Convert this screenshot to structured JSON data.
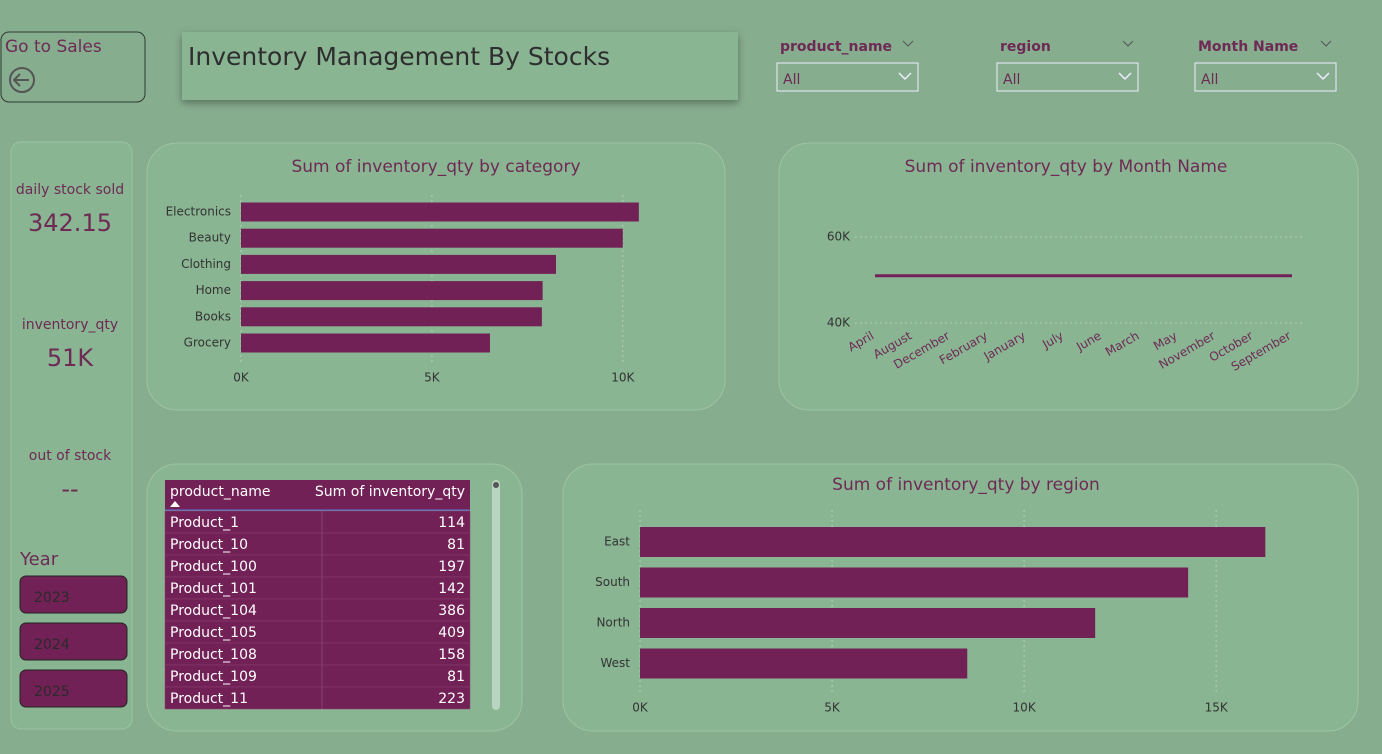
{
  "nav": {
    "button": "Go to Sales"
  },
  "header": {
    "title": "Inventory Management By Stocks"
  },
  "filters": [
    {
      "label": "product_name",
      "value": "All"
    },
    {
      "label": "region",
      "value": "All"
    },
    {
      "label": "Month Name",
      "value": "All"
    }
  ],
  "cards": [
    {
      "label": "daily stock sold",
      "value": "342.15"
    },
    {
      "label": "inventory_qty",
      "value": "51K"
    },
    {
      "label": "out of stock",
      "value": "--"
    }
  ],
  "year_slicer": {
    "title": "Year",
    "options": [
      "2023",
      "2024",
      "2025"
    ]
  },
  "table": {
    "columns": [
      "product_name",
      "Sum of inventory_qty"
    ],
    "rows": [
      [
        "Product_1",
        114
      ],
      [
        "Product_10",
        81
      ],
      [
        "Product_100",
        197
      ],
      [
        "Product_101",
        142
      ],
      [
        "Product_104",
        386
      ],
      [
        "Product_105",
        409
      ],
      [
        "Product_108",
        158
      ],
      [
        "Product_109",
        81
      ],
      [
        "Product_11",
        223
      ]
    ]
  },
  "chart_data": [
    {
      "type": "hbar",
      "title": "Sum of inventory_qty by category",
      "categories": [
        "Electronics",
        "Beauty",
        "Clothing",
        "Home",
        "Books",
        "Grocery"
      ],
      "values": [
        10420,
        10000,
        8250,
        7900,
        7880,
        6520
      ],
      "color": "#722157",
      "xlim": [
        0,
        11000
      ],
      "xticks": [
        {
          "value": 0,
          "label": "0K"
        },
        {
          "value": 5000,
          "label": "5K"
        },
        {
          "value": 10000,
          "label": "10K"
        }
      ],
      "grid": true
    },
    {
      "type": "line",
      "title": "Sum of inventory_qty by Month Name",
      "categories": [
        "April",
        "August",
        "December",
        "February",
        "January",
        "July",
        "June",
        "March",
        "May",
        "November",
        "October",
        "September"
      ],
      "values": [
        51000,
        51000,
        51000,
        51000,
        51000,
        51000,
        51000,
        51000,
        51000,
        51000,
        51000,
        51000
      ],
      "color": "#722157",
      "ylim": [
        40000,
        60000
      ],
      "yticks": [
        {
          "value": 40000,
          "label": "40K"
        },
        {
          "value": 60000,
          "label": "60K"
        }
      ],
      "grid": true
    },
    {
      "type": "hbar",
      "title": "Sum of inventory_qty by region",
      "categories": [
        "East",
        "South",
        "North",
        "West"
      ],
      "values": [
        16280,
        14270,
        11850,
        8520
      ],
      "color": "#722157",
      "xlim": [
        0,
        17000
      ],
      "xticks": [
        {
          "value": 0,
          "label": "0K"
        },
        {
          "value": 5000,
          "label": "5K"
        },
        {
          "value": 10000,
          "label": "10K"
        },
        {
          "value": 15000,
          "label": "15K"
        }
      ],
      "grid": true
    }
  ]
}
